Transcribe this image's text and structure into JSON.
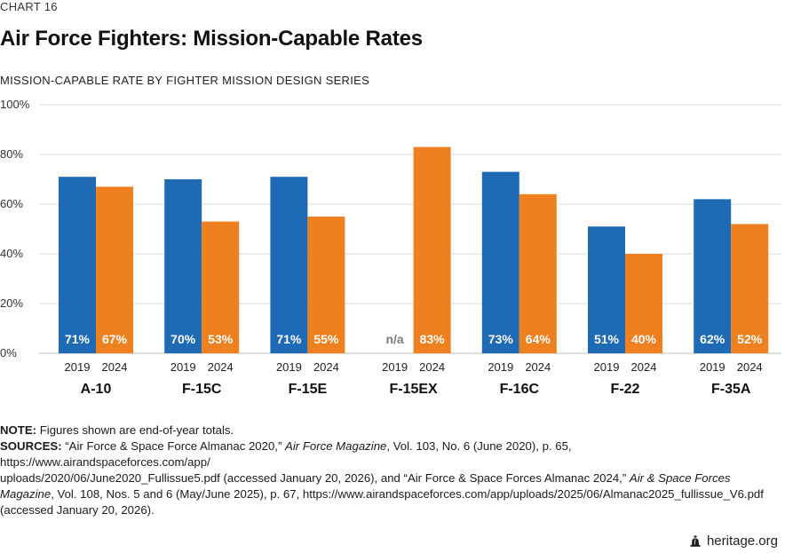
{
  "chart_number": "CHART 16",
  "title": "Air Force Fighters: Mission-Capable Rates",
  "subtitle": "MISSION-CAPABLE RATE BY FIGHTER MISSION DESIGN SERIES",
  "chart_data": {
    "type": "bar",
    "title": "Air Force Fighters: Mission-Capable Rates",
    "subtitle": "MISSION-CAPABLE RATE BY FIGHTER MISSION DESIGN SERIES",
    "categories": [
      "A-10",
      "F-15C",
      "F-15E",
      "F-15EX",
      "F-16C",
      "F-22",
      "F-35A"
    ],
    "series": [
      {
        "name": "2019",
        "color": "#1f6ab5",
        "values": [
          71,
          70,
          71,
          null,
          73,
          51,
          62
        ],
        "labels": [
          "71%",
          "70%",
          "71%",
          "n/a",
          "73%",
          "51%",
          "62%"
        ]
      },
      {
        "name": "2024",
        "color": "#ee8020",
        "values": [
          67,
          53,
          55,
          83,
          64,
          40,
          52
        ],
        "labels": [
          "67%",
          "53%",
          "55%",
          "83%",
          "64%",
          "40%",
          "52%"
        ]
      }
    ],
    "ylim": [
      0,
      100
    ],
    "yticks": [
      0,
      20,
      40,
      60,
      80,
      100
    ],
    "ytick_labels": [
      "0%",
      "20%",
      "40%",
      "60%",
      "80%",
      "100%"
    ],
    "xlabel": "",
    "ylabel": "",
    "grid": true,
    "na_color": "#7a7a7a"
  },
  "notes": {
    "note_label": "NOTE:",
    "note_text": "Figures shown are end-of-year totals.",
    "sources_label": "SOURCES:",
    "sources_part1": "“Air Force & Space Force Almanac 2020,”",
    "sources_mag1": "Air Force Magazine",
    "sources_part2": ", Vol. 103, No. 6 (June 2020), p. 65, https://www.airandspaceforces.com/app/",
    "sources_line2a": "uploads/2020/06/June2020_Fullissue5.pdf (accessed January 20, 2026), and “Air Force & Space Forces Almanac 2024,”",
    "sources_mag2a": "Air & Space Forces",
    "sources_mag2b": "Magazine",
    "sources_line3": ", Vol. 108, Nos. 5 and 6 (May/June 2025), p. 67, https://www.airandspaceforces.com/app/uploads/2025/06/Almanac2025_fullissue_V6.pdf",
    "sources_line4": "(accessed January 20, 2026)."
  },
  "footer": {
    "brand": "heritage.org",
    "icon": "liberty-bell-icon"
  }
}
